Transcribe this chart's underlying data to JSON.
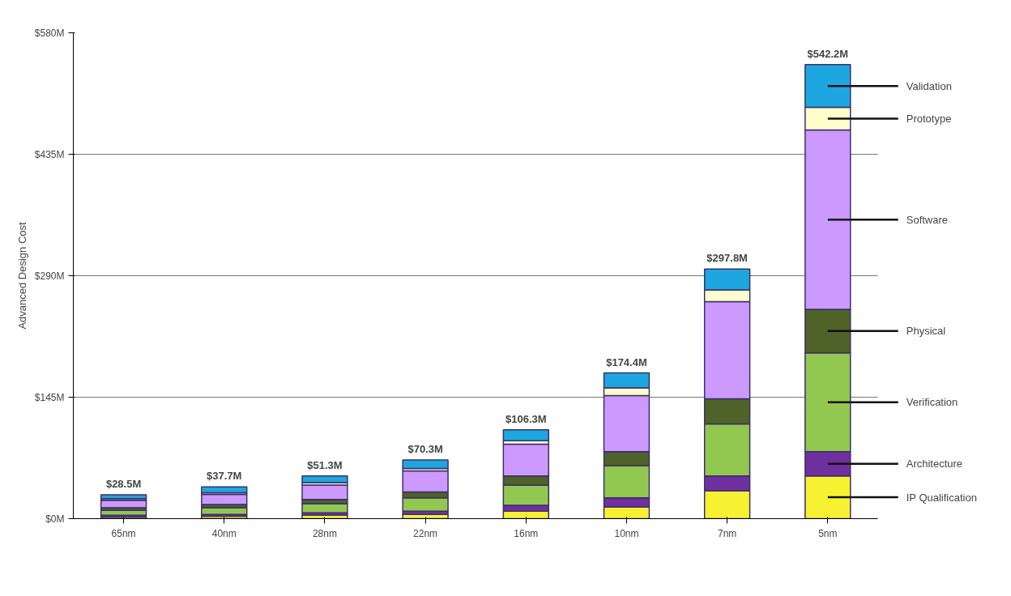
{
  "chart_data": {
    "type": "bar",
    "stacked": true,
    "ylabel": "Advanced Design Cost",
    "categories": [
      "65nm",
      "40nm",
      "28nm",
      "22nm",
      "16nm",
      "10nm",
      "7nm",
      "5nm"
    ],
    "series": [
      {
        "name": "IP Qualification",
        "color": "#f7f231",
        "values": [
          2,
          3,
          4,
          5,
          9,
          14,
          33,
          51
        ]
      },
      {
        "name": "Architecture",
        "color": "#7030a0",
        "values": [
          2,
          2,
          3,
          4,
          7,
          11,
          18,
          29
        ]
      },
      {
        "name": "Verification",
        "color": "#92c84f",
        "values": [
          6,
          8,
          11,
          16,
          24,
          38,
          62,
          118
        ]
      },
      {
        "name": "Physical",
        "color": "#4f6228",
        "values": [
          3,
          4,
          5,
          7,
          11,
          17,
          30,
          52
        ]
      },
      {
        "name": "Software",
        "color": "#cc99ff",
        "values": [
          9,
          12,
          17,
          25,
          38,
          67,
          116,
          214
        ]
      },
      {
        "name": "Prototype",
        "color": "#ffffcc",
        "values": [
          2,
          2,
          3,
          3,
          4,
          9,
          14,
          27
        ]
      },
      {
        "name": "Validation",
        "color": "#1ea6e0",
        "values": [
          4.5,
          7,
          8,
          10,
          13,
          18,
          25,
          51
        ]
      }
    ],
    "totals": [
      "$28.5M",
      "$37.7M",
      "$51.3M",
      "$70.3M",
      "$106.3M",
      "$174.4M",
      "$297.8M",
      "$542.2M"
    ],
    "ylim": [
      0,
      580
    ],
    "yticks": [
      {
        "value": 0,
        "label": "$0M"
      },
      {
        "value": 145,
        "label": "$145M"
      },
      {
        "value": 290,
        "label": "$290M"
      },
      {
        "value": 435,
        "label": "$435M"
      },
      {
        "value": 580,
        "label": "$580M"
      }
    ],
    "grid": "y"
  }
}
